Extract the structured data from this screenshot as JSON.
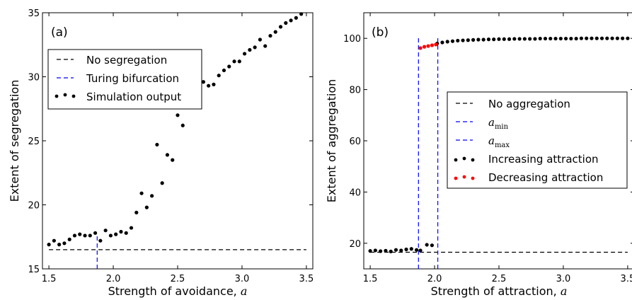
{
  "chart_data": [
    {
      "type": "scatter",
      "panel_label": "(a)",
      "xlabel": "Strength of avoidance,",
      "xlabel_symbol": "a",
      "ylabel": "Extent of segregation",
      "xlim": [
        1.45,
        3.55
      ],
      "ylim": [
        15,
        35
      ],
      "xticks": [
        "1.5",
        "2.0",
        "2.5",
        "3.0",
        "3.5"
      ],
      "yticks": [
        "15",
        "20",
        "25",
        "30",
        "35"
      ],
      "legend_position": "upper-left",
      "legend": [
        "No segregation",
        "Turing bifurcation",
        "Simulation output"
      ],
      "hlines": [
        {
          "y": 16.5,
          "x": [
            1.5,
            3.5
          ],
          "color": "#000000",
          "name": "No segregation"
        }
      ],
      "vlines": [
        {
          "x": 1.875,
          "y": [
            15,
            17.7
          ],
          "color": "#0000ff",
          "name": "Turing bifurcation"
        }
      ],
      "series": [
        {
          "name": "Simulation output",
          "color": "#000000",
          "x": [
            1.5,
            1.54,
            1.58,
            1.62,
            1.66,
            1.7,
            1.74,
            1.78,
            1.82,
            1.86,
            1.9,
            1.94,
            1.98,
            2.02,
            2.06,
            2.1,
            2.14,
            2.18,
            2.22,
            2.26,
            2.3,
            2.34,
            2.38,
            2.42,
            2.46,
            2.5,
            2.54,
            2.58,
            2.62,
            2.66,
            2.7,
            2.74,
            2.78,
            2.82,
            2.86,
            2.9,
            2.94,
            2.98,
            3.02,
            3.06,
            3.1,
            3.14,
            3.18,
            3.22,
            3.26,
            3.3,
            3.34,
            3.38,
            3.42,
            3.46,
            3.5
          ],
          "y": [
            16.9,
            17.2,
            16.9,
            17.0,
            17.3,
            17.6,
            17.7,
            17.6,
            17.6,
            17.8,
            17.2,
            18.0,
            17.6,
            17.7,
            17.9,
            17.8,
            18.2,
            19.4,
            20.9,
            19.8,
            20.7,
            24.7,
            21.7,
            23.9,
            23.5,
            27.0,
            26.2,
            28.1,
            28.6,
            28.2,
            29.6,
            29.3,
            29.4,
            30.1,
            30.5,
            30.8,
            31.2,
            31.2,
            31.8,
            32.1,
            32.3,
            32.9,
            32.4,
            33.2,
            33.5,
            33.9,
            34.2,
            34.4,
            34.6,
            34.9,
            35.1
          ]
        }
      ]
    },
    {
      "type": "scatter",
      "panel_label": "(b)",
      "xlabel": "Strength of attraction,",
      "xlabel_symbol": "a",
      "ylabel": "Extent of aggregation",
      "xlim": [
        1.45,
        3.55
      ],
      "ylim": [
        10,
        110
      ],
      "xticks": [
        "1.5",
        "2.0",
        "2.5",
        "3.0",
        "3.5"
      ],
      "yticks": [
        "20",
        "40",
        "60",
        "80",
        "100"
      ],
      "legend_position": "center-right",
      "legend": [
        "No aggregation",
        "a_min",
        "a_max",
        "Increasing attraction",
        "Decreasing attraction"
      ],
      "legend_sub": [
        "min",
        "max"
      ],
      "hlines": [
        {
          "y": 16.5,
          "x": [
            1.5,
            3.5
          ],
          "color": "#000000",
          "name": "No aggregation"
        }
      ],
      "vlines": [
        {
          "x": 1.875,
          "y": [
            10,
            101
          ],
          "color": "#0000ff",
          "name": "a_min"
        },
        {
          "x": 2.025,
          "y": [
            10,
            101
          ],
          "color": "#0000ff",
          "name": "a_max"
        }
      ],
      "series": [
        {
          "name": "Increasing attraction",
          "color": "#000000",
          "x": [
            1.5,
            1.54,
            1.58,
            1.62,
            1.66,
            1.7,
            1.74,
            1.78,
            1.82,
            1.86,
            1.89,
            1.94,
            1.98,
            2.02,
            2.06,
            2.1,
            2.14,
            2.18,
            2.22,
            2.26,
            2.3,
            2.34,
            2.38,
            2.42,
            2.46,
            2.5,
            2.54,
            2.58,
            2.62,
            2.66,
            2.7,
            2.74,
            2.78,
            2.82,
            2.86,
            2.9,
            2.94,
            2.98,
            3.02,
            3.06,
            3.1,
            3.14,
            3.18,
            3.22,
            3.26,
            3.3,
            3.34,
            3.38,
            3.42,
            3.46,
            3.5
          ],
          "y": [
            17.0,
            17.2,
            16.9,
            17.1,
            16.8,
            17.4,
            17.2,
            17.6,
            17.8,
            17.4,
            17.2,
            19.4,
            19.2,
            98.0,
            98.4,
            98.7,
            98.9,
            99.1,
            99.2,
            99.3,
            99.4,
            99.5,
            99.5,
            99.6,
            99.6,
            99.7,
            99.7,
            99.7,
            99.8,
            99.8,
            99.8,
            99.8,
            99.8,
            99.9,
            99.9,
            99.9,
            99.9,
            99.9,
            99.9,
            99.9,
            99.9,
            100.0,
            100.0,
            100.0,
            100.0,
            100.0,
            100.0,
            100.0,
            100.0,
            100.0,
            100.0
          ]
        },
        {
          "name": "Decreasing attraction",
          "color": "#ff0000",
          "x": [
            1.89,
            1.92,
            1.95,
            1.98,
            2.01
          ],
          "y": [
            96.2,
            96.7,
            97.0,
            97.3,
            97.6
          ]
        }
      ]
    }
  ]
}
